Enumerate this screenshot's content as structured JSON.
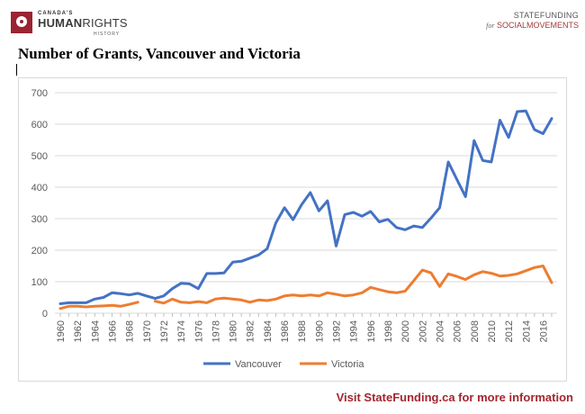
{
  "logo_left": {
    "small": "CANADA'S",
    "big_bold": "HUMAN",
    "big_rest": "RIGHTS",
    "sub": "HISTORY"
  },
  "logo_right": {
    "top": "STATEFUNDING",
    "bottom_prefix": "for",
    "bottom_main": "SOCIALMOVEMENTS"
  },
  "title": "Number of Grants, Vancouver and Victoria",
  "footer": "Visit StateFunding.ca for more information",
  "colors": {
    "vancouver": "#4472c4",
    "victoria": "#ed7d31",
    "grid": "#d9d9d9",
    "footer": "#a4262c"
  },
  "chart_data": {
    "type": "line",
    "title": "Number of Grants, Vancouver and Victoria",
    "xlabel": "",
    "ylabel": "",
    "ylim": [
      0,
      700
    ],
    "yticks": [
      0,
      100,
      200,
      300,
      400,
      500,
      600,
      700
    ],
    "xticks": [
      1960,
      1962,
      1964,
      1966,
      1968,
      1970,
      1972,
      1974,
      1976,
      1978,
      1980,
      1982,
      1984,
      1986,
      1988,
      1990,
      1992,
      1994,
      1996,
      1998,
      2000,
      2002,
      2004,
      2006,
      2008,
      2010,
      2012,
      2014,
      2016
    ],
    "grid": "horizontal",
    "legend": "bottom",
    "x": [
      1960,
      1961,
      1962,
      1963,
      1964,
      1965,
      1966,
      1967,
      1968,
      1969,
      1970,
      1971,
      1972,
      1973,
      1974,
      1975,
      1976,
      1977,
      1978,
      1979,
      1980,
      1981,
      1982,
      1983,
      1984,
      1985,
      1986,
      1987,
      1988,
      1989,
      1990,
      1991,
      1992,
      1993,
      1994,
      1995,
      1996,
      1997,
      1998,
      1999,
      2000,
      2001,
      2002,
      2003,
      2004,
      2005,
      2006,
      2007,
      2008,
      2009,
      2010,
      2011,
      2012,
      2013,
      2014,
      2015,
      2016,
      2017
    ],
    "series": [
      {
        "name": "Vancouver",
        "values": [
          30,
          33,
          33,
          33,
          45,
          50,
          65,
          62,
          58,
          63,
          55,
          47,
          55,
          78,
          95,
          93,
          78,
          126,
          126,
          128,
          162,
          165,
          175,
          185,
          205,
          287,
          335,
          297,
          345,
          383,
          325,
          357,
          213,
          313,
          320,
          308,
          323,
          290,
          298,
          272,
          265,
          277,
          272,
          302,
          335,
          480,
          425,
          370,
          548,
          485,
          480,
          613,
          558,
          640,
          642,
          583,
          570,
          618
        ]
      },
      {
        "name": "Victoria",
        "values": [
          15,
          22,
          22,
          20,
          22,
          23,
          25,
          22,
          28,
          35,
          null,
          38,
          32,
          45,
          35,
          33,
          37,
          33,
          45,
          48,
          45,
          42,
          35,
          42,
          40,
          45,
          55,
          58,
          55,
          58,
          55,
          65,
          60,
          55,
          58,
          65,
          82,
          75,
          68,
          65,
          70,
          103,
          137,
          128,
          85,
          125,
          117,
          107,
          122,
          132,
          127,
          118,
          120,
          125,
          135,
          145,
          150,
          97
        ]
      }
    ]
  }
}
